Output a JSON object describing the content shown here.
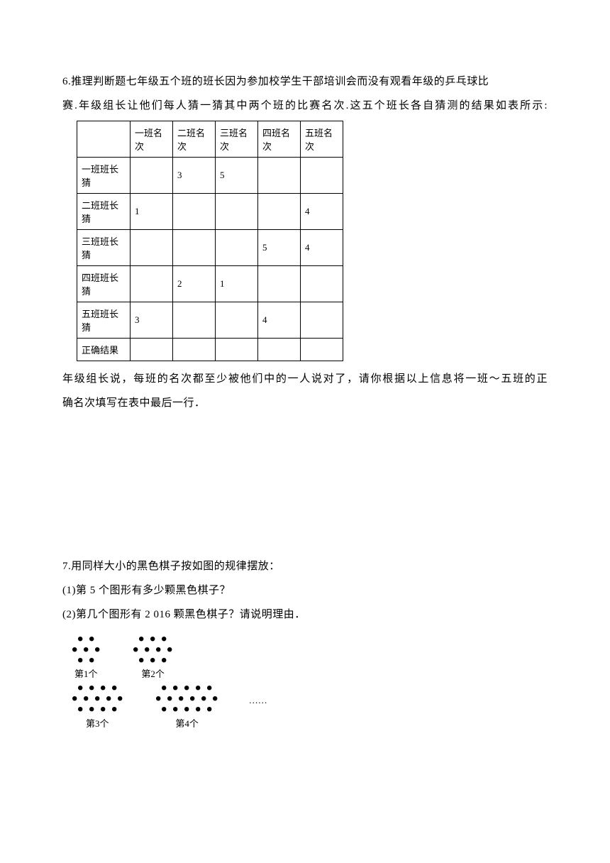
{
  "problem6": {
    "text_line1": "6.推理判断题七年级五个班的班长因为参加校学生干部培训会而没有观看年级的乒乓球比",
    "text_line2": "赛.年级组长让他们每人猜一猜其中两个班的比赛名次.这五个班长各自猜测的结果如表所示:",
    "text_after1": "年级组长说，每班的名次都至少被他们中的一人说对了，请你根据以上信息将一班～五班的正",
    "text_after2": "确名次填写在表中最后一行．",
    "table": {
      "headers": [
        "",
        "一班名次",
        "二班名次",
        "三班名次",
        "四班名次",
        "五班名次"
      ],
      "rows": [
        {
          "label": "一班班长猜",
          "cells": [
            "",
            "3",
            "5",
            "",
            ""
          ]
        },
        {
          "label": "二班班长猜",
          "cells": [
            "1",
            "",
            "",
            "",
            "4"
          ]
        },
        {
          "label": "三班班长猜",
          "cells": [
            "",
            "",
            "",
            "5",
            "4"
          ]
        },
        {
          "label": "四班班长猜",
          "cells": [
            "",
            "2",
            "1",
            "",
            ""
          ]
        },
        {
          "label": "五班班长猜",
          "cells": [
            "3",
            "",
            "",
            "4",
            ""
          ]
        },
        {
          "label": "正确结果",
          "cells": [
            "",
            "",
            "",
            "",
            ""
          ]
        }
      ]
    }
  },
  "problem7": {
    "text_line1": "7.用同样大小的黑色棋子按如图的规律摆放：",
    "text_line2": "(1)第 5 个图形有多少颗黑色棋子？",
    "text_line3": "(2)第几个图形有 2 016 颗黑色棋子？请说明理由．",
    "figures": {
      "ellipsis": "……",
      "labels": [
        "第1个",
        "第2个",
        "第3个",
        "第4个"
      ],
      "dot_color": "#000000",
      "dot_radius": 3.2,
      "patterns": [
        {
          "rows": [
            2,
            3,
            2
          ],
          "label_idx": 0
        },
        {
          "rows": [
            3,
            4,
            3
          ],
          "label_idx": 1
        },
        {
          "rows": [
            4,
            5,
            4
          ],
          "label_idx": 2
        },
        {
          "rows": [
            5,
            6,
            5
          ],
          "label_idx": 3
        }
      ]
    }
  },
  "styling": {
    "background_color": "#ffffff",
    "text_color": "#000000",
    "font_family": "SimSun",
    "body_font_size": 15,
    "table_font_size": 13,
    "border_color": "#000000"
  }
}
